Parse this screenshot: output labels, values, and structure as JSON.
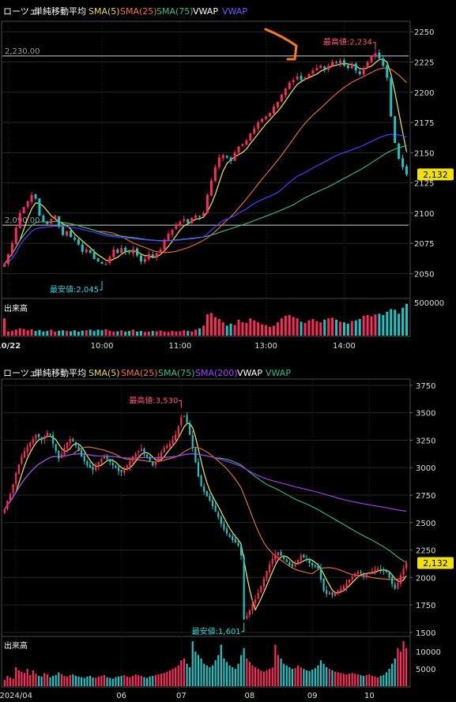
{
  "colors": {
    "bg": "#000000",
    "frame": "#4a4a4a",
    "grid": "#262626",
    "axis_text": "#dcdcdc",
    "up": "#ff2a5c",
    "down": "#19c7c7",
    "sma5": "#e8d84a",
    "sma25": "#f07238",
    "sma75": "#2fbf8a",
    "sma200": "#a640ff",
    "vwap": "#4b3cff",
    "vwap_daily": "#2fbf8a",
    "price_tag_bg": "#f0e010",
    "high_label": "#ff5b7a",
    "low_label": "#2fd6d6",
    "annotation_stroke": "#ff7a1a",
    "refline": "#cfcfcf"
  },
  "chart_data": [
    {
      "type": "candlestick",
      "name": "intraday",
      "header": {
        "symbol": "ローツェ",
        "indicator": "単純移動平均",
        "legend": [
          {
            "label": "SMA(5)",
            "color": "#e8d84a"
          },
          {
            "label": "SMA(25)",
            "color": "#f07238"
          },
          {
            "label": "SMA(75)",
            "color": "#2fbf8a"
          },
          {
            "label": "VWAP",
            "color": "#ffffff"
          },
          {
            "label": "VWAP",
            "color": "#6a5cff"
          }
        ]
      },
      "y_ticks": [
        2050,
        2075,
        2100,
        2125,
        2150,
        2175,
        2200,
        2225,
        2250
      ],
      "ylim": [
        2030,
        2258
      ],
      "x_ticks": [
        {
          "label": "10/22",
          "bold": true,
          "i": 1
        },
        {
          "label": "10:00",
          "i": 25
        },
        {
          "label": "11:00",
          "i": 45
        },
        {
          "label": "13:00",
          "i": 67
        },
        {
          "label": "14:00",
          "i": 87
        }
      ],
      "n": 104,
      "ref_lines": [
        {
          "value": 2230,
          "label": "2,230.00"
        },
        {
          "value": 2090,
          "label": "2,090.00"
        }
      ],
      "high": {
        "label": "最高値:2,234",
        "i": 95,
        "value": 2234
      },
      "low": {
        "label": "最安値:2,045",
        "i": 25,
        "value": 2045
      },
      "last_price": {
        "label": "2,132",
        "value": 2132
      },
      "volume": {
        "title": "出来高",
        "ticks": [
          {
            "label": "500000",
            "value": 500000
          }
        ],
        "max": 500000
      },
      "close": [
        2058,
        2066,
        2075,
        2088,
        2100,
        2105,
        2110,
        2115,
        2112,
        2098,
        2093,
        2091,
        2095,
        2098,
        2089,
        2082,
        2085,
        2080,
        2078,
        2074,
        2068,
        2070,
        2067,
        2062,
        2060,
        2058,
        2058,
        2064,
        2070,
        2067,
        2071,
        2068,
        2067,
        2070,
        2065,
        2060,
        2062,
        2066,
        2064,
        2067,
        2070,
        2078,
        2083,
        2086,
        2090,
        2093,
        2095,
        2092,
        2096,
        2098,
        2097,
        2100,
        2115,
        2127,
        2138,
        2146,
        2148,
        2146,
        2143,
        2150,
        2155,
        2157,
        2160,
        2166,
        2170,
        2175,
        2178,
        2180,
        2183,
        2188,
        2192,
        2198,
        2203,
        2208,
        2210,
        2213,
        2210,
        2212,
        2215,
        2218,
        2220,
        2222,
        2219,
        2222,
        2225,
        2224,
        2226,
        2222,
        2220,
        2223,
        2218,
        2215,
        2220,
        2225,
        2230,
        2232,
        2228,
        2222,
        2212,
        2180,
        2158,
        2145,
        2138,
        2132
      ],
      "volume_values": [
        260000,
        60000,
        70000,
        90000,
        110000,
        100000,
        80000,
        95000,
        70000,
        85000,
        60000,
        70000,
        90000,
        60000,
        75000,
        80000,
        70000,
        65000,
        80000,
        60000,
        75000,
        80000,
        90000,
        70000,
        90000,
        80000,
        95000,
        75000,
        60000,
        65000,
        80000,
        60000,
        70000,
        90000,
        60000,
        70000,
        55000,
        60000,
        70000,
        65000,
        75000,
        60000,
        55000,
        70000,
        60000,
        65000,
        80000,
        70000,
        60000,
        90000,
        110000,
        150000,
        320000,
        340000,
        280000,
        250000,
        200000,
        150000,
        180000,
        160000,
        240000,
        200000,
        190000,
        260000,
        230000,
        200000,
        170000,
        160000,
        130000,
        150000,
        200000,
        260000,
        300000,
        310000,
        280000,
        260000,
        210000,
        190000,
        230000,
        250000,
        220000,
        200000,
        240000,
        260000,
        270000,
        240000,
        210000,
        200000,
        180000,
        220000,
        230000,
        250000,
        300000,
        310000,
        290000,
        320000,
        330000,
        310000,
        360000,
        400000,
        390000,
        330000,
        420000,
        480000
      ]
    },
    {
      "type": "candlestick",
      "name": "daily",
      "header": {
        "symbol": "ローツェ",
        "indicator": "単純移動平均",
        "legend": [
          {
            "label": "SMA(5)",
            "color": "#e8d84a"
          },
          {
            "label": "SMA(25)",
            "color": "#f07238"
          },
          {
            "label": "SMA(75)",
            "color": "#2fbf8a"
          },
          {
            "label": "SMA(200)",
            "color": "#a640ff"
          },
          {
            "label": "VWAP",
            "color": "#ffffff"
          },
          {
            "label": "VWAP",
            "color": "#2fbf8a"
          }
        ]
      },
      "y_ticks": [
        1500,
        1750,
        2000,
        2250,
        2500,
        2750,
        3000,
        3250,
        3500,
        3750
      ],
      "ylim": [
        1470,
        3800
      ],
      "x_ticks": [
        {
          "label": "2024/04",
          "i": 4
        },
        {
          "label": "06",
          "i": 41
        },
        {
          "label": "07",
          "i": 62
        },
        {
          "label": "08",
          "i": 86
        },
        {
          "label": "09",
          "i": 108
        },
        {
          "label": "10",
          "i": 128
        }
      ],
      "n": 142,
      "high": {
        "label": "最高値:3,530",
        "i": 62,
        "value": 3530
      },
      "low": {
        "label": "最安値:1,601",
        "i": 84,
        "value": 1601
      },
      "last_price": {
        "label": "2,132",
        "value": 2132
      },
      "volume": {
        "title": "出来高",
        "ticks": [
          {
            "label": "10000",
            "value": 10000
          },
          {
            "label": "5000",
            "value": 5000
          }
        ],
        "max": 13000
      },
      "close": [
        2620,
        2700,
        2760,
        2850,
        2950,
        3030,
        3100,
        3150,
        3190,
        3230,
        3260,
        3300,
        3280,
        3250,
        3280,
        3320,
        3300,
        3220,
        3150,
        3080,
        3120,
        3180,
        3230,
        3260,
        3240,
        3200,
        3150,
        3100,
        3060,
        3020,
        3000,
        2980,
        3010,
        3050,
        3080,
        3100,
        3080,
        3050,
        3020,
        3000,
        2970,
        2960,
        2980,
        3020,
        3060,
        3100,
        3130,
        3150,
        3170,
        3130,
        3100,
        3060,
        3020,
        3050,
        3100,
        3140,
        3180,
        3200,
        3220,
        3250,
        3300,
        3380,
        3460,
        3470,
        3400,
        3300,
        3180,
        3050,
        2920,
        2830,
        2780,
        2740,
        2700,
        2650,
        2600,
        2550,
        2490,
        2440,
        2400,
        2370,
        2340,
        2320,
        2290,
        2200,
        1620,
        1650,
        1700,
        1760,
        1800,
        1860,
        1920,
        1990,
        2060,
        2120,
        2170,
        2210,
        2230,
        2200,
        2170,
        2140,
        2110,
        2100,
        2120,
        2160,
        2200,
        2180,
        2160,
        2130,
        2110,
        2100,
        2080,
        1980,
        1880,
        1850,
        1870,
        1840,
        1860,
        1880,
        1900,
        1920,
        1950,
        1980,
        2010,
        2040,
        2050,
        2040,
        2020,
        2030,
        2050,
        2060,
        2070,
        2080,
        2070,
        2060,
        2050,
        2000,
        1940,
        1900,
        1950,
        2020,
        2080,
        2132
      ],
      "volume_values": [
        1800,
        3000,
        2500,
        2200,
        5500,
        4600,
        4200,
        3800,
        5000,
        3200,
        4600,
        3600,
        3000,
        2800,
        3800,
        3400,
        2600,
        3000,
        3200,
        4000,
        3500,
        3000,
        2800,
        3200,
        3400,
        3000,
        2800,
        2600,
        2400,
        2800,
        3000,
        2500,
        2400,
        2800,
        3000,
        3200,
        2600,
        2400,
        2200,
        2600,
        2800,
        3000,
        3200,
        2800,
        2600,
        3000,
        3400,
        3200,
        3000,
        2600,
        2400,
        2800,
        3000,
        3200,
        3400,
        3600,
        3800,
        4200,
        4600,
        5000,
        5400,
        6000,
        7500,
        8000,
        6500,
        5500,
        13000,
        10000,
        9000,
        8000,
        6500,
        6000,
        5500,
        6000,
        7500,
        9000,
        12000,
        8000,
        7000,
        6000,
        5500,
        5000,
        6500,
        9000,
        11000,
        8000,
        7000,
        6000,
        5500,
        5000,
        4500,
        4200,
        4600,
        5000,
        5400,
        12000,
        9000,
        8000,
        6500,
        6000,
        5500,
        5000,
        5200,
        6000,
        5500,
        5000,
        4600,
        4400,
        4800,
        5200,
        6000,
        7500,
        6500,
        5500,
        5000,
        4600,
        4200,
        4000,
        3800,
        3600,
        3400,
        3600,
        3800,
        3600,
        3400,
        3200,
        3000,
        3200,
        3400,
        3000,
        2800,
        2600,
        3000,
        3200,
        4000,
        5000,
        6500,
        8000,
        11000,
        10000,
        13000,
        11000
      ]
    }
  ]
}
